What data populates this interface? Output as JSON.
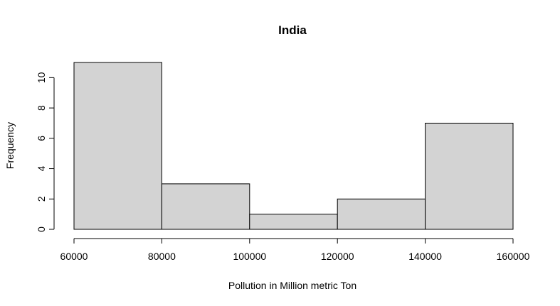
{
  "chart_data": {
    "type": "bar",
    "title": "India",
    "xlabel": "Pollution in Million metric Ton",
    "ylabel": "Frequency",
    "bins": [
      {
        "start": 60000,
        "end": 80000,
        "count": 11
      },
      {
        "start": 80000,
        "end": 100000,
        "count": 3
      },
      {
        "start": 100000,
        "end": 120000,
        "count": 1
      },
      {
        "start": 120000,
        "end": 140000,
        "count": 2
      },
      {
        "start": 140000,
        "end": 160000,
        "count": 7
      }
    ],
    "xlim": [
      60000,
      160000
    ],
    "ylim": [
      0,
      11
    ],
    "xticks": [
      "60000",
      "80000",
      "100000",
      "120000",
      "140000",
      "160000"
    ],
    "yticks": [
      "0",
      "2",
      "4",
      "6",
      "8",
      "10"
    ],
    "grid": false,
    "bar_fill": "#d3d3d3",
    "bar_stroke": "#000000"
  }
}
